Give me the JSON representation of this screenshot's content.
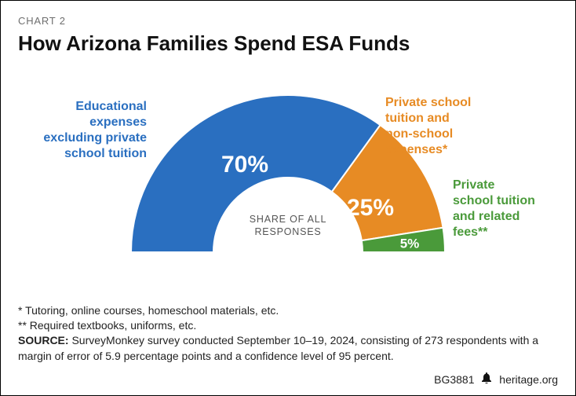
{
  "chart_label": "CHART 2",
  "title": "How Arizona Families Spend ESA Funds",
  "chart": {
    "type": "half-donut",
    "inner_radius": 95,
    "outer_radius": 200,
    "background_color": "#ffffff",
    "gap_color": "#ffffff",
    "gap_width": 2,
    "slices": [
      {
        "key": "educational_expenses",
        "label_lines": [
          "Educational",
          "expenses",
          "excluding private",
          "school tuition"
        ],
        "value_pct": 70,
        "value_text": "70%",
        "color": "#2a6fc0",
        "label_color": "#2a6fc0"
      },
      {
        "key": "tuition_plus_nonschool",
        "label_lines": [
          "Private school",
          "tuition and",
          "non-school",
          "expenses*"
        ],
        "value_pct": 25,
        "value_text": "25%",
        "color": "#e78b24",
        "label_color": "#e78b24"
      },
      {
        "key": "tuition_related_fees",
        "label_lines": [
          "Private",
          "school tuition",
          "and related",
          "fees**"
        ],
        "value_pct": 5,
        "value_text": "5%",
        "color": "#4a9a3a",
        "label_color": "#4a9a3a"
      }
    ],
    "center_label_lines": [
      "SHARE OF ALL",
      "RESPONSES"
    ]
  },
  "footnotes": {
    "note1": "* Tutoring, online courses, homeschool materials, etc.",
    "note2": "** Required textbooks, uniforms, etc.",
    "source_label": "SOURCE:",
    "source_text": "SurveyMonkey survey conducted September 10–19, 2024, consisting of 273 respondents with a margin of error of 5.9 percentage points and a confidence level of 95 percent."
  },
  "footer": {
    "code": "BG3881",
    "site": "heritage.org"
  }
}
